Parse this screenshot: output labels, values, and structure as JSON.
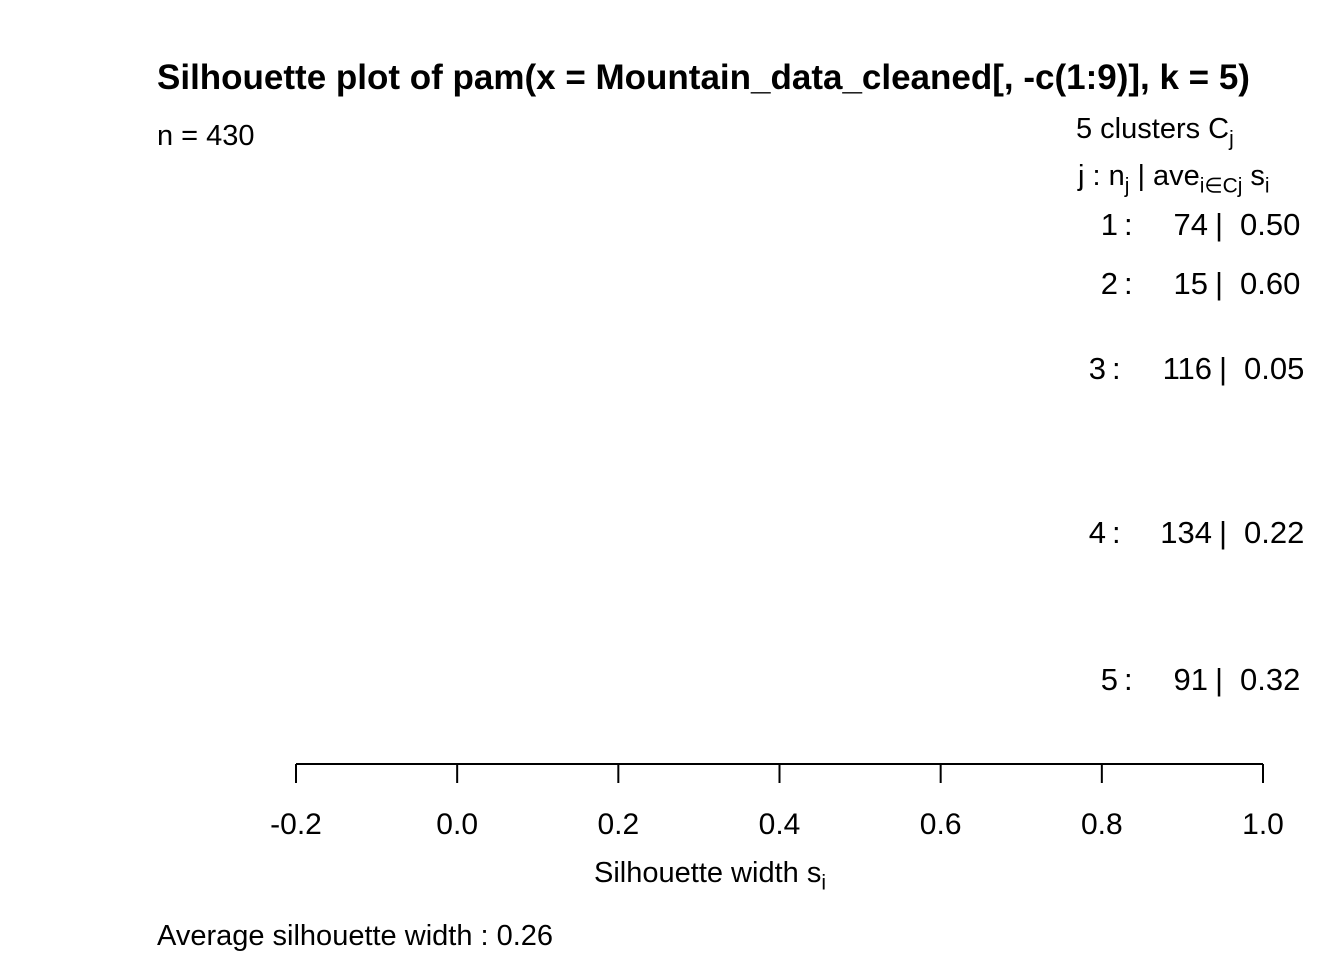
{
  "chart_data": {
    "type": "bar",
    "title": "Silhouette plot of pam(x = Mountain_data_cleaned[, -c(1:9)], k = 5)",
    "subtitle": "n = 430",
    "xlabel": "Silhouette width s",
    "xlabel_sub": "i",
    "xlim": [
      -0.2,
      1.0
    ],
    "xticks": [
      "-0.2",
      "0.0",
      "0.2",
      "0.4",
      "0.6",
      "0.8",
      "1.0"
    ],
    "xtick_values": [
      -0.2,
      0.0,
      0.2,
      0.4,
      0.6,
      0.8,
      1.0
    ],
    "legend_header": "5  clusters  C",
    "legend_header_sub": "j",
    "legend_cols": {
      "j": "j :  n",
      "j_sub": "j",
      "ave": " | ave",
      "ave_sub": "i∈Cj",
      "s": "  s",
      "s_sub": "i"
    },
    "clusters": [
      {
        "j": "1",
        "n": "74",
        "ave": "0.50"
      },
      {
        "j": "2",
        "n": "15",
        "ave": "0.60"
      },
      {
        "j": "3",
        "n": "116",
        "ave": "0.05"
      },
      {
        "j": "4",
        "n": "134",
        "ave": "0.22"
      },
      {
        "j": "5",
        "n": "91",
        "ave": "0.32"
      }
    ],
    "footer": "Average silhouette width :  0.26"
  }
}
